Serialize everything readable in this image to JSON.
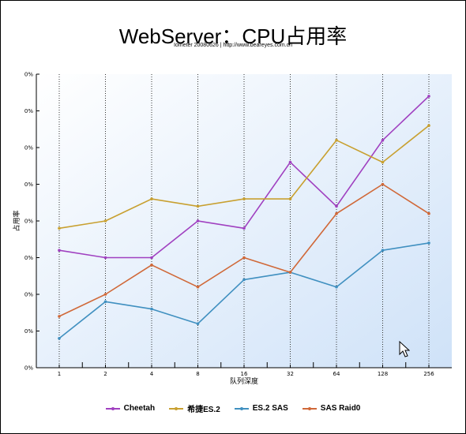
{
  "chart_data": {
    "type": "line",
    "title": "WebServer：CPU占用率",
    "subtitle": "Iometer 20080626 | http://www.beareyes.com.cn",
    "xlabel": "队列深度",
    "ylabel": "占用率",
    "categories": [
      "1",
      "2",
      "4",
      "8",
      "16",
      "32",
      "64",
      "128",
      "256"
    ],
    "y_tick_labels": [
      "0%",
      "0%",
      "0%",
      "0%",
      "0%",
      "0%",
      "0%",
      "0%",
      "0%"
    ],
    "ylim": [
      0,
      8
    ],
    "grid": "vertical-dotted",
    "legend_position": "bottom",
    "series": [
      {
        "name": "Cheetah",
        "color": "#a040c0",
        "values": [
          3.2,
          3.0,
          3.0,
          4.0,
          3.8,
          5.6,
          4.4,
          6.2,
          7.4
        ]
      },
      {
        "name": "希捷ES.2",
        "color": "#c8a030",
        "values": [
          3.8,
          4.0,
          4.6,
          4.4,
          4.6,
          4.6,
          6.2,
          5.6,
          6.6
        ]
      },
      {
        "name": "ES.2 SAS",
        "color": "#4090c0",
        "values": [
          0.8,
          1.8,
          1.6,
          1.2,
          2.4,
          2.6,
          2.2,
          3.2,
          3.4
        ]
      },
      {
        "name": "SAS Raid0",
        "color": "#d06838",
        "values": [
          1.4,
          2.0,
          2.8,
          2.2,
          3.0,
          2.6,
          4.2,
          5.0,
          4.2
        ]
      }
    ]
  }
}
